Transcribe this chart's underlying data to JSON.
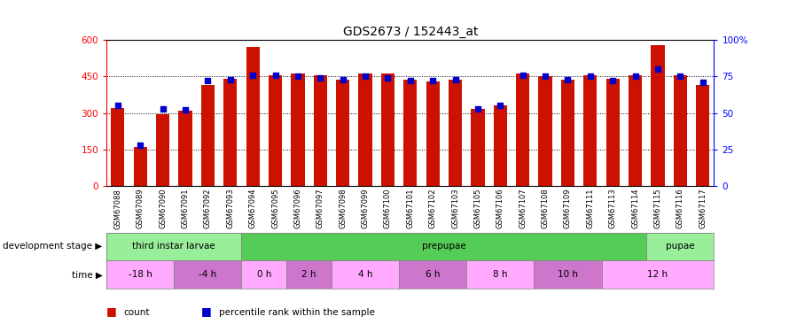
{
  "title": "GDS2673 / 152443_at",
  "samples": [
    "GSM67088",
    "GSM67089",
    "GSM67090",
    "GSM67091",
    "GSM67092",
    "GSM67093",
    "GSM67094",
    "GSM67095",
    "GSM67096",
    "GSM67097",
    "GSM67098",
    "GSM67099",
    "GSM67100",
    "GSM67101",
    "GSM67102",
    "GSM67103",
    "GSM67105",
    "GSM67106",
    "GSM67107",
    "GSM67108",
    "GSM67109",
    "GSM67111",
    "GSM67113",
    "GSM67114",
    "GSM67115",
    "GSM67116",
    "GSM67117"
  ],
  "counts": [
    320,
    160,
    295,
    310,
    415,
    440,
    570,
    455,
    460,
    455,
    435,
    460,
    460,
    435,
    430,
    435,
    315,
    330,
    460,
    450,
    435,
    455,
    440,
    455,
    580,
    455,
    415
  ],
  "percentiles": [
    55,
    28,
    53,
    52,
    72,
    73,
    76,
    76,
    75,
    74,
    73,
    75,
    74,
    72,
    72,
    73,
    53,
    55,
    76,
    75,
    73,
    75,
    72,
    75,
    80,
    75,
    71
  ],
  "ylim_left": [
    0,
    600
  ],
  "ylim_right": [
    0,
    100
  ],
  "yticks_left": [
    0,
    150,
    300,
    450,
    600
  ],
  "yticks_right": [
    0,
    25,
    50,
    75,
    100
  ],
  "bar_color": "#cc1100",
  "dot_color": "#0000cc",
  "background_color": "#ffffff",
  "dev_stages": [
    {
      "label": "third instar larvae",
      "start": 0,
      "end": 6,
      "color": "#99ee99"
    },
    {
      "label": "prepupae",
      "start": 6,
      "end": 24,
      "color": "#55cc55"
    },
    {
      "label": "pupae",
      "start": 24,
      "end": 27,
      "color": "#99ee99"
    }
  ],
  "time_stages": [
    {
      "label": "-18 h",
      "start": 0,
      "end": 3,
      "color": "#ffaaff"
    },
    {
      "label": "-4 h",
      "start": 3,
      "end": 6,
      "color": "#cc77cc"
    },
    {
      "label": "0 h",
      "start": 6,
      "end": 8,
      "color": "#ffaaff"
    },
    {
      "label": "2 h",
      "start": 8,
      "end": 10,
      "color": "#cc77cc"
    },
    {
      "label": "4 h",
      "start": 10,
      "end": 13,
      "color": "#ffaaff"
    },
    {
      "label": "6 h",
      "start": 13,
      "end": 16,
      "color": "#cc77cc"
    },
    {
      "label": "8 h",
      "start": 16,
      "end": 19,
      "color": "#ffaaff"
    },
    {
      "label": "10 h",
      "start": 19,
      "end": 22,
      "color": "#cc77cc"
    },
    {
      "label": "12 h",
      "start": 22,
      "end": 27,
      "color": "#ffaaff"
    }
  ],
  "legend_items": [
    {
      "label": "count",
      "color": "#cc1100"
    },
    {
      "label": "percentile rank within the sample",
      "color": "#0000cc"
    }
  ]
}
